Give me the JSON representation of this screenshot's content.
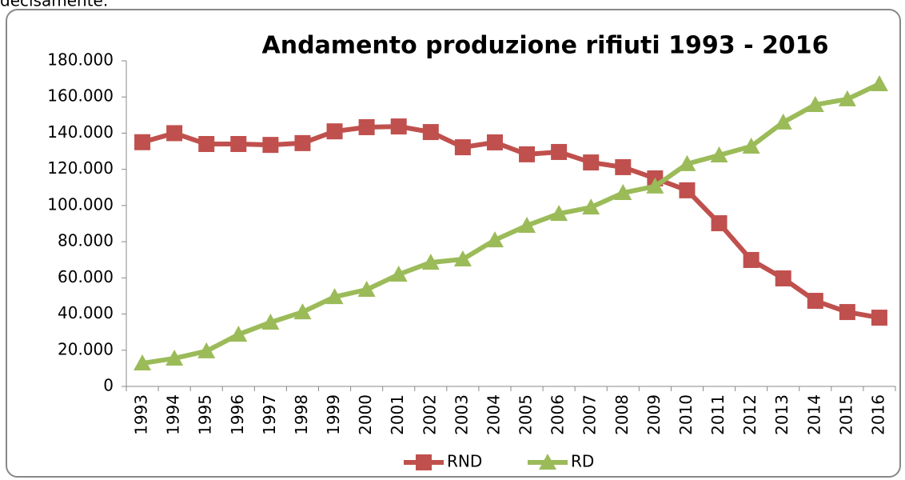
{
  "page_text": "decisamente.",
  "chart_data": {
    "type": "line",
    "title": "Andamento produzione rifiuti 1993 - 2016",
    "categories": [
      "1993",
      "1994",
      "1995",
      "1996",
      "1997",
      "1998",
      "1999",
      "2000",
      "2001",
      "2002",
      "2003",
      "2004",
      "2005",
      "2006",
      "2007",
      "2008",
      "2009",
      "2010",
      "2011",
      "2012",
      "2013",
      "2014",
      "2015",
      "2016"
    ],
    "series": [
      {
        "name": "RND",
        "color": "#c0504d",
        "marker": "square",
        "values": [
          135000,
          140000,
          134000,
          134000,
          133500,
          134500,
          141000,
          143300,
          143700,
          140600,
          132200,
          134900,
          128300,
          129600,
          123800,
          121200,
          115000,
          108400,
          90200,
          69900,
          59700,
          47300,
          41100,
          38000
        ]
      },
      {
        "name": "RD",
        "color": "#9bbb59",
        "marker": "triangle",
        "values": [
          12800,
          15500,
          19500,
          28700,
          35400,
          41100,
          49500,
          53500,
          61900,
          68500,
          70300,
          80900,
          88900,
          95500,
          99000,
          107000,
          110600,
          123000,
          127800,
          132700,
          146000,
          155700,
          158800,
          167200
        ]
      }
    ],
    "ylim": [
      0,
      180000
    ],
    "yticks": [
      0,
      {
        "value": 20000,
        "label": "20.000"
      },
      {
        "value": 40000,
        "label": "40.000"
      },
      {
        "value": 60000,
        "label": "60.000"
      },
      {
        "value": 80000,
        "label": "80.000"
      },
      {
        "value": 100000,
        "label": "100.000"
      },
      {
        "value": 120000,
        "label": "120.000"
      },
      {
        "value": 140000,
        "label": "140.000"
      },
      {
        "value": 160000,
        "label": "160.000"
      },
      {
        "value": 180000,
        "label": "180.000"
      }
    ],
    "grid": false,
    "legend": "bottom"
  }
}
